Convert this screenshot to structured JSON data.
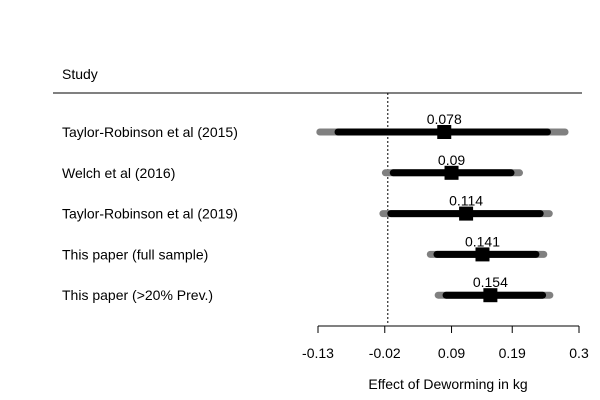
{
  "chart_data": {
    "type": "forest",
    "header": "Study",
    "xlabel": "Effect of Deworming in kg",
    "xlim": [
      -0.13,
      0.3
    ],
    "ticks": [
      {
        "value": -0.13,
        "label": "-0.13"
      },
      {
        "value": -0.02,
        "label": "-0.02"
      },
      {
        "value": 0.09,
        "label": "0.09"
      },
      {
        "value": 0.19,
        "label": "0.19"
      },
      {
        "value": 0.3,
        "label": "0.3"
      }
    ],
    "reference_line": -0.015,
    "studies": [
      {
        "label": "Taylor-Robinson et al (2015)",
        "estimate": 0.078,
        "estimate_label": "0.078",
        "ci_inner": [
          -0.097,
          0.248
        ],
        "ci_outer": [
          -0.127,
          0.277
        ]
      },
      {
        "label": "Welch et al (2016)",
        "estimate": 0.09,
        "estimate_label": "0.09",
        "ci_inner": [
          -0.006,
          0.188
        ],
        "ci_outer": [
          -0.019,
          0.202
        ]
      },
      {
        "label": "Taylor-Robinson et al (2019)",
        "estimate": 0.114,
        "estimate_label": "0.114",
        "ci_inner": [
          -0.01,
          0.236
        ],
        "ci_outer": [
          -0.023,
          0.251
        ]
      },
      {
        "label": "This paper (full sample)",
        "estimate": 0.141,
        "estimate_label": "0.141",
        "ci_inner": [
          0.066,
          0.229
        ],
        "ci_outer": [
          0.055,
          0.242
        ]
      },
      {
        "label": "This paper (>20% Prev.)",
        "estimate": 0.154,
        "estimate_label": "0.154",
        "ci_inner": [
          0.081,
          0.24
        ],
        "ci_outer": [
          0.068,
          0.252
        ]
      }
    ],
    "colors": {
      "inner_ci": "#000000",
      "outer_ci": "#808080",
      "point": "#000000",
      "axis": "#000000"
    }
  }
}
